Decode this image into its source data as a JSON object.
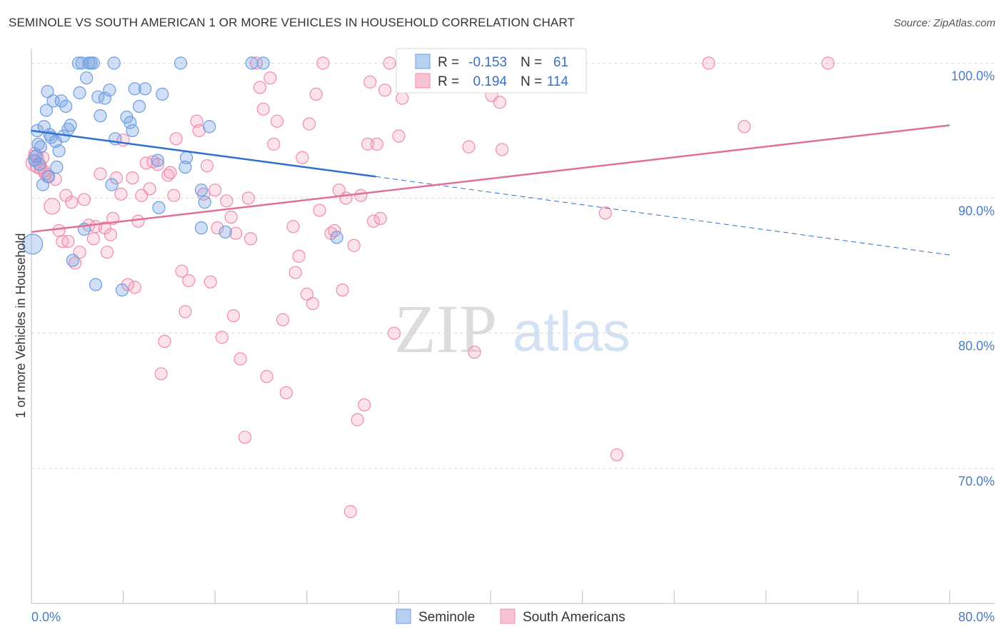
{
  "title": "SEMINOLE VS SOUTH AMERICAN 1 OR MORE VEHICLES IN HOUSEHOLD CORRELATION CHART",
  "source": "Source: ZipAtlas.com",
  "watermark": {
    "zip": "ZIP",
    "atlas": "atlas"
  },
  "colors": {
    "seminole": "#6a9ee0",
    "south_americans": "#f08bac",
    "seminole_line": "#2f6fce",
    "south_line": "#e0709a",
    "tick_text": "#4a7cc4"
  },
  "legend": {
    "r_label": "R =",
    "n_label": "N =",
    "rows": [
      {
        "r": "-0.153",
        "n": "61"
      },
      {
        "r": "0.194",
        "n": "114"
      }
    ]
  },
  "chart_data": {
    "type": "scatter",
    "title": "SEMINOLE VS SOUTH AMERICAN 1 OR MORE VEHICLES IN HOUSEHOLD CORRELATION CHART",
    "xlabel": "",
    "ylabel": "1 or more Vehicles in Household",
    "xlim": [
      0,
      80
    ],
    "ylim": [
      60,
      101.5
    ],
    "x_tick_labels": [
      "0.0%",
      "80.0%"
    ],
    "y_ticks": [
      70,
      80,
      90,
      100
    ],
    "y_tick_labels": [
      "70.0%",
      "80.0%",
      "90.0%",
      "100.0%"
    ],
    "grid": true,
    "legend_position": "bottom",
    "series": [
      {
        "name": "Seminole",
        "trend": {
          "x0": 0,
          "y0": 95.0,
          "x1": 30,
          "y1": 91.6,
          "dashed_to_x": 80,
          "dashed_to_y": 85.8
        },
        "points": [
          [
            0.1,
            86.6
          ],
          [
            0.3,
            92.8
          ],
          [
            0.4,
            93.1
          ],
          [
            0.5,
            95.0
          ],
          [
            0.6,
            94.0
          ],
          [
            0.8,
            93.8
          ],
          [
            1.0,
            91.0
          ],
          [
            1.1,
            95.3
          ],
          [
            1.3,
            96.5
          ],
          [
            1.4,
            97.9
          ],
          [
            1.5,
            91.6
          ],
          [
            1.6,
            94.7
          ],
          [
            1.9,
            97.2
          ],
          [
            2.1,
            94.2
          ],
          [
            2.2,
            92.3
          ],
          [
            2.4,
            93.5
          ],
          [
            2.6,
            97.2
          ],
          [
            2.8,
            94.6
          ],
          [
            3.0,
            96.8
          ],
          [
            3.2,
            95.1
          ],
          [
            3.4,
            95.4
          ],
          [
            3.6,
            85.4
          ],
          [
            4.1,
            100.0
          ],
          [
            4.4,
            100.0
          ],
          [
            4.2,
            97.8
          ],
          [
            4.6,
            87.7
          ],
          [
            4.8,
            98.9
          ],
          [
            5.0,
            100.0
          ],
          [
            5.2,
            100.0
          ],
          [
            5.4,
            100.0
          ],
          [
            5.6,
            83.6
          ],
          [
            5.8,
            97.5
          ],
          [
            6.0,
            96.1
          ],
          [
            6.4,
            97.4
          ],
          [
            6.8,
            98.0
          ],
          [
            7.0,
            91.0
          ],
          [
            7.2,
            100.0
          ],
          [
            7.3,
            94.4
          ],
          [
            7.9,
            83.2
          ],
          [
            8.3,
            96.0
          ],
          [
            8.6,
            95.6
          ],
          [
            8.8,
            95.0
          ],
          [
            9.0,
            98.1
          ],
          [
            9.4,
            96.8
          ],
          [
            9.9,
            98.1
          ],
          [
            11.0,
            92.8
          ],
          [
            11.4,
            97.7
          ],
          [
            11.1,
            89.3
          ],
          [
            13.0,
            100.0
          ],
          [
            13.5,
            93.0
          ],
          [
            13.4,
            92.3
          ],
          [
            14.8,
            90.6
          ],
          [
            15.1,
            89.7
          ],
          [
            14.8,
            87.8
          ],
          [
            15.5,
            95.3
          ],
          [
            16.9,
            87.5
          ],
          [
            19.2,
            100.0
          ],
          [
            20.2,
            100.0
          ],
          [
            26.6,
            87.1
          ],
          [
            0.7,
            92.5
          ],
          [
            1.7,
            94.5
          ]
        ]
      },
      {
        "name": "South Americans",
        "trend": {
          "x0": 0,
          "y0": 87.5,
          "x1": 80,
          "y1": 95.4
        },
        "points": [
          [
            0.2,
            92.6
          ],
          [
            0.4,
            93.0
          ],
          [
            0.6,
            92.4
          ],
          [
            0.8,
            92.2
          ],
          [
            1.0,
            93.0
          ],
          [
            1.2,
            91.8
          ],
          [
            1.4,
            91.6
          ],
          [
            1.8,
            89.4
          ],
          [
            2.1,
            91.4
          ],
          [
            2.4,
            87.6
          ],
          [
            2.7,
            86.8
          ],
          [
            3.0,
            90.2
          ],
          [
            3.2,
            86.8
          ],
          [
            3.5,
            89.7
          ],
          [
            3.8,
            85.2
          ],
          [
            4.2,
            86.0
          ],
          [
            4.6,
            89.9
          ],
          [
            5.0,
            88.0
          ],
          [
            5.4,
            87.0
          ],
          [
            5.6,
            87.9
          ],
          [
            6.0,
            91.8
          ],
          [
            6.4,
            87.8
          ],
          [
            6.6,
            86.0
          ],
          [
            6.9,
            87.3
          ],
          [
            7.1,
            88.5
          ],
          [
            7.4,
            91.5
          ],
          [
            7.8,
            90.3
          ],
          [
            8.0,
            94.3
          ],
          [
            8.4,
            83.6
          ],
          [
            8.8,
            91.5
          ],
          [
            9.0,
            83.4
          ],
          [
            9.3,
            88.3
          ],
          [
            9.6,
            90.2
          ],
          [
            10.0,
            92.6
          ],
          [
            10.3,
            90.7
          ],
          [
            10.6,
            92.7
          ],
          [
            11.0,
            92.5
          ],
          [
            11.3,
            77.0
          ],
          [
            11.6,
            79.4
          ],
          [
            11.9,
            91.7
          ],
          [
            12.1,
            91.9
          ],
          [
            12.4,
            90.2
          ],
          [
            12.6,
            94.4
          ],
          [
            13.1,
            84.6
          ],
          [
            13.4,
            81.6
          ],
          [
            13.7,
            83.9
          ],
          [
            14.4,
            95.7
          ],
          [
            14.6,
            95.0
          ],
          [
            15.0,
            90.3
          ],
          [
            15.3,
            92.4
          ],
          [
            15.6,
            83.8
          ],
          [
            16.0,
            90.6
          ],
          [
            16.2,
            87.8
          ],
          [
            16.6,
            79.7
          ],
          [
            17.0,
            89.8
          ],
          [
            17.4,
            88.6
          ],
          [
            17.6,
            81.3
          ],
          [
            17.8,
            87.4
          ],
          [
            18.2,
            78.1
          ],
          [
            18.6,
            72.3
          ],
          [
            18.9,
            90.0
          ],
          [
            19.1,
            87.0
          ],
          [
            19.6,
            100.0
          ],
          [
            19.9,
            98.2
          ],
          [
            20.2,
            96.6
          ],
          [
            20.5,
            76.8
          ],
          [
            20.8,
            98.9
          ],
          [
            21.1,
            94.0
          ],
          [
            21.4,
            95.7
          ],
          [
            21.9,
            81.0
          ],
          [
            22.2,
            75.6
          ],
          [
            22.8,
            87.9
          ],
          [
            23.0,
            84.5
          ],
          [
            23.3,
            85.7
          ],
          [
            23.6,
            93.0
          ],
          [
            24.0,
            82.9
          ],
          [
            24.2,
            95.5
          ],
          [
            24.5,
            82.2
          ],
          [
            24.8,
            97.7
          ],
          [
            25.1,
            89.1
          ],
          [
            25.4,
            100.0
          ],
          [
            26.1,
            87.4
          ],
          [
            26.4,
            87.6
          ],
          [
            26.8,
            90.6
          ],
          [
            27.1,
            83.2
          ],
          [
            27.4,
            90.0
          ],
          [
            27.8,
            66.8
          ],
          [
            28.1,
            86.5
          ],
          [
            28.4,
            73.6
          ],
          [
            28.7,
            90.2
          ],
          [
            29.0,
            74.7
          ],
          [
            29.3,
            94.0
          ],
          [
            29.5,
            98.6
          ],
          [
            29.8,
            88.3
          ],
          [
            30.1,
            94.0
          ],
          [
            30.4,
            88.5
          ],
          [
            30.8,
            98.0
          ],
          [
            31.2,
            100.0
          ],
          [
            31.6,
            80.0
          ],
          [
            32.0,
            94.6
          ],
          [
            32.3,
            97.4
          ],
          [
            34.6,
            100.0
          ],
          [
            38.1,
            93.8
          ],
          [
            38.6,
            78.6
          ],
          [
            40.1,
            97.6
          ],
          [
            40.8,
            97.1
          ],
          [
            41.0,
            93.6
          ],
          [
            50.0,
            88.9
          ],
          [
            51.0,
            71.0
          ],
          [
            59.0,
            100.0
          ],
          [
            62.1,
            95.3
          ],
          [
            69.4,
            100.0
          ],
          [
            0.3,
            93.3
          ],
          [
            1.1,
            92.0
          ]
        ]
      }
    ]
  },
  "bottom_legend": [
    {
      "label": "Seminole"
    },
    {
      "label": "South Americans"
    }
  ]
}
